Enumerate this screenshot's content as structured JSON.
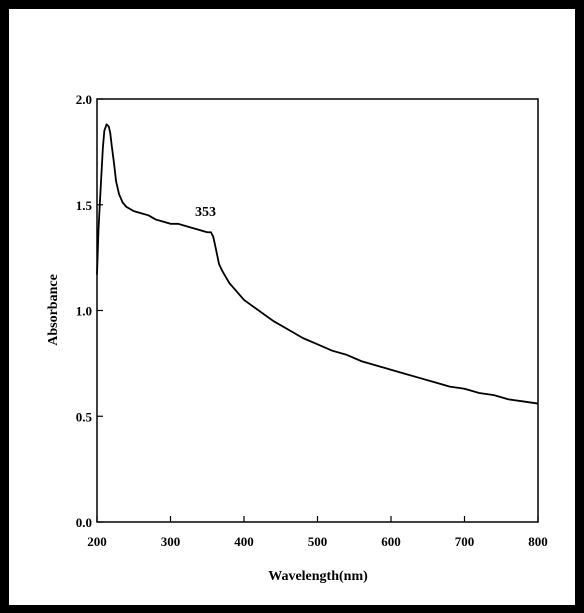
{
  "chart_data": {
    "type": "line",
    "xlabel": "Wavelength(nm)",
    "ylabel": "Absorbance",
    "xlim": [
      200,
      800
    ],
    "ylim": [
      0.0,
      2.0
    ],
    "xticks": [
      200,
      300,
      400,
      500,
      600,
      700,
      800
    ],
    "yticks": [
      "0.0",
      "0.5",
      "1.0",
      "1.5",
      "2.0"
    ],
    "grid": false,
    "annotations": [
      {
        "text": "353",
        "x": 353,
        "y": 1.47
      }
    ],
    "series": [
      {
        "x": [
          200,
          202,
          205,
          208,
          210,
          213,
          216,
          218,
          220,
          223,
          226,
          230,
          235,
          240,
          245,
          250,
          260,
          270,
          280,
          290,
          300,
          310,
          320,
          330,
          340,
          350,
          355,
          358,
          360,
          363,
          366,
          370,
          375,
          380,
          390,
          400,
          420,
          440,
          460,
          480,
          500,
          520,
          540,
          560,
          580,
          600,
          620,
          640,
          660,
          680,
          700,
          720,
          740,
          760,
          780,
          800
        ],
        "values": [
          1.17,
          1.38,
          1.58,
          1.77,
          1.85,
          1.88,
          1.87,
          1.84,
          1.78,
          1.7,
          1.61,
          1.55,
          1.51,
          1.49,
          1.48,
          1.47,
          1.46,
          1.45,
          1.43,
          1.42,
          1.41,
          1.41,
          1.4,
          1.39,
          1.38,
          1.37,
          1.37,
          1.35,
          1.32,
          1.27,
          1.22,
          1.19,
          1.16,
          1.13,
          1.09,
          1.05,
          1.0,
          0.95,
          0.91,
          0.87,
          0.84,
          0.81,
          0.79,
          0.76,
          0.74,
          0.72,
          0.7,
          0.68,
          0.66,
          0.64,
          0.63,
          0.61,
          0.6,
          0.58,
          0.57,
          0.56
        ]
      }
    ]
  }
}
